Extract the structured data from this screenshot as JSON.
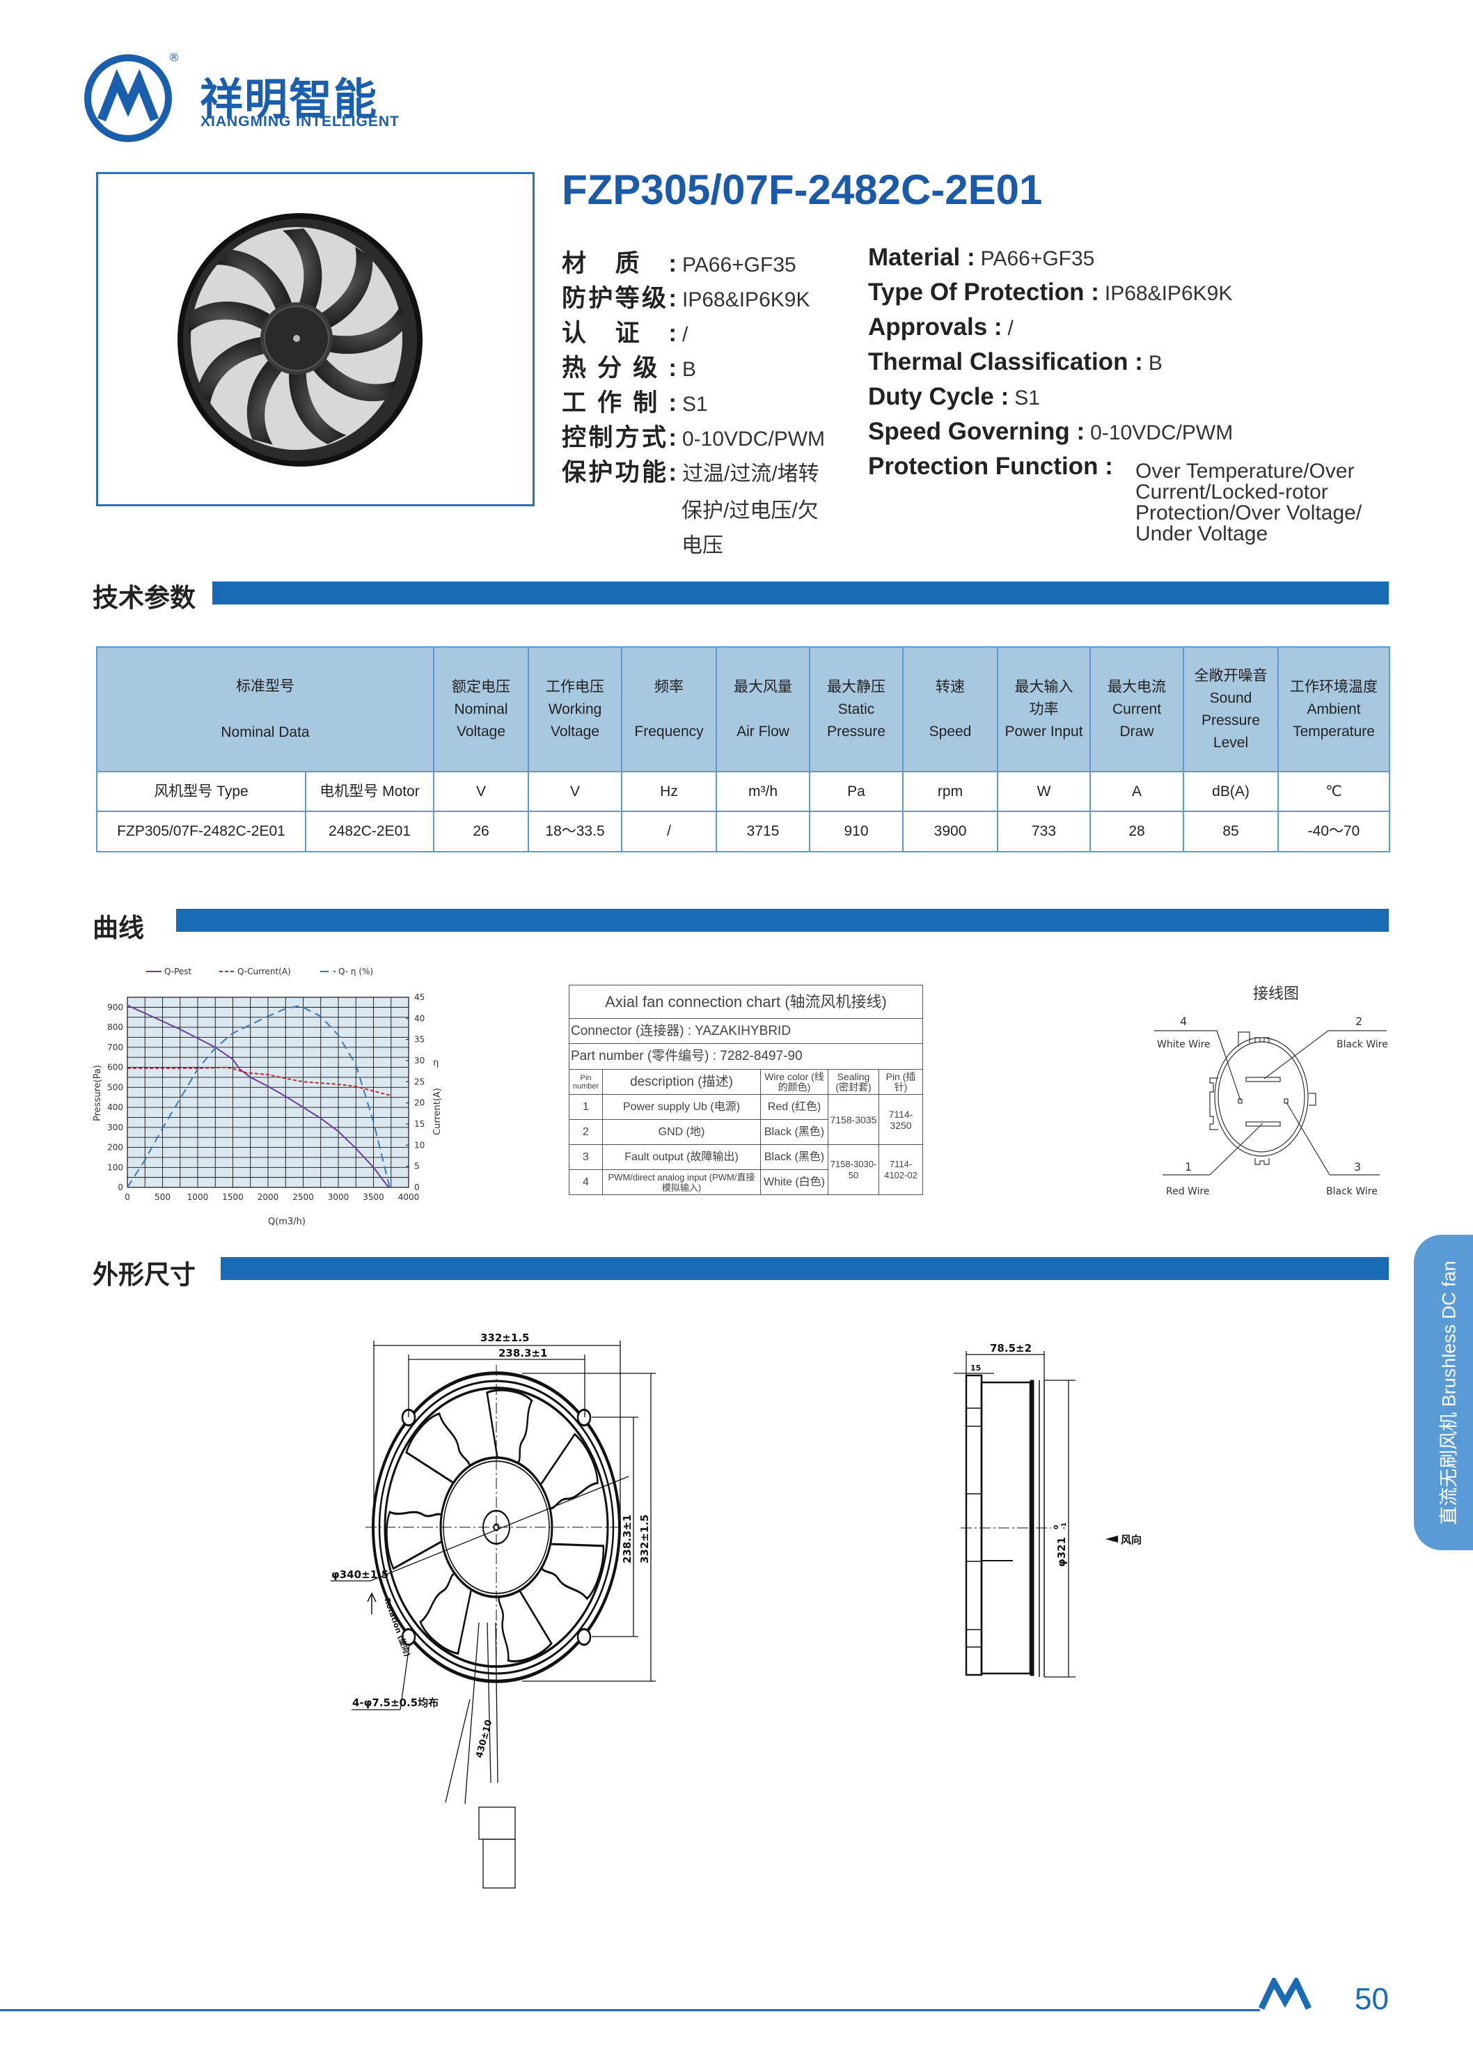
{
  "brand": {
    "name_cn": "祥明智能",
    "name_en": "XIANGMING INTELLIGENT",
    "registered": "®",
    "accent": "#1a5fae"
  },
  "product": {
    "title": "FZP305/07F-2482C-2E01"
  },
  "specs_cn": [
    {
      "label": "材质:",
      "value": "PA66+GF35"
    },
    {
      "label": "防护等级:",
      "value": "IP68&IP6K9K"
    },
    {
      "label": "认证:",
      "value": "/"
    },
    {
      "label": "热分级:",
      "value": "B"
    },
    {
      "label": "工作制:",
      "value": "S1"
    },
    {
      "label": "控制方式:",
      "value": "0-10VDC/PWM"
    },
    {
      "label": "保护功能:",
      "value": "过温/过流/堵转",
      "value_line2": "保护/过电压/欠",
      "value_line3": "电压"
    }
  ],
  "specs_en": [
    {
      "label": "Material :",
      "value": "PA66+GF35"
    },
    {
      "label": "Type Of Protection :",
      "value": "IP68&IP6K9K"
    },
    {
      "label": "Approvals :",
      "value": "/"
    },
    {
      "label": "Thermal Classification :",
      "value": "B"
    },
    {
      "label": "Duty Cycle :",
      "value": "S1"
    },
    {
      "label": "Speed Governing :",
      "value": "0-10VDC/PWM"
    },
    {
      "label": "Protection Function :",
      "value_lines": [
        "Over Temperature/Over",
        "Current/Locked-rotor",
        "Protection/Over Voltage/",
        "Under Voltage"
      ]
    }
  ],
  "sections": {
    "tech": "技术参数",
    "curve": "曲线",
    "dimensions": "外形尺寸"
  },
  "spec_table": {
    "headers": [
      {
        "cn": "标准型号",
        "en": "Nominal Data"
      },
      {
        "cn": "额定电压",
        "en1": "Nominal",
        "en2": "Voltage"
      },
      {
        "cn": "工作电压",
        "en1": "Working",
        "en2": "Voltage"
      },
      {
        "cn": "频率",
        "en1": "",
        "en2": "Frequency"
      },
      {
        "cn": "最大风量",
        "en1": "",
        "en2": "Air Flow"
      },
      {
        "cn": "最大静压",
        "en1": "Static",
        "en2": "Pressure"
      },
      {
        "cn": "转速",
        "en1": "",
        "en2": "Speed"
      },
      {
        "cn": "最大输入",
        "en1": "功率",
        "en2": "Power Input"
      },
      {
        "cn": "最大电流",
        "en1": "Current",
        "en2": "Draw"
      },
      {
        "cn": "全敞开噪音",
        "en1": "Sound",
        "en2": "Pressure",
        "en3": "Level"
      },
      {
        "cn": "工作环境温度",
        "en1": "Ambient",
        "en2": "Temperature"
      }
    ],
    "units": [
      "风机型号 Type",
      "电机型号 Motor",
      "V",
      "V",
      "Hz",
      "m³/h",
      "Pa",
      "rpm",
      "W",
      "A",
      "dB(A)",
      "℃"
    ],
    "values": [
      "FZP305/07F-2482C-2E01",
      "2482C-2E01",
      "26",
      "18～33.5",
      "/",
      "3715",
      "910",
      "3900",
      "733",
      "28",
      "85",
      "-40～70"
    ]
  },
  "chart_data": {
    "type": "line",
    "legend": [
      "Q-Pest",
      "Q-Current(A)",
      "Q- η (%)"
    ],
    "legend_placement": "top",
    "xlabel": "Q(m3/h)",
    "ylabel": "Pressure(Pa)",
    "y2label_top": "η",
    "y2label": "Current(A)",
    "xlim": [
      0,
      4000
    ],
    "ylim": [
      0,
      950
    ],
    "y2lim": [
      0,
      45
    ],
    "xticks": [
      0,
      500,
      1000,
      1500,
      2000,
      2500,
      3000,
      3500,
      4000
    ],
    "yticks": [
      0,
      100,
      200,
      300,
      400,
      500,
      600,
      700,
      800,
      900
    ],
    "y2ticks": [
      0,
      5,
      10,
      15,
      20,
      25,
      30,
      35,
      40,
      45
    ],
    "grid": true,
    "series": [
      {
        "name": "Q-Pest",
        "axis": "left",
        "color": "#6a3d9a",
        "style": "solid",
        "x": [
          0,
          250,
          500,
          750,
          1000,
          1250,
          1500,
          1600,
          1750,
          2000,
          2250,
          2500,
          2750,
          3000,
          3250,
          3500,
          3715
        ],
        "y": [
          910,
          870,
          830,
          790,
          745,
          700,
          640,
          590,
          550,
          505,
          455,
          400,
          345,
          280,
          195,
          100,
          0
        ]
      },
      {
        "name": "Q-Current(A)",
        "axis": "right",
        "color": "#c0262d",
        "style": "dashed",
        "x": [
          0,
          500,
          1000,
          1400,
          1500,
          1700,
          2000,
          2250,
          2500,
          3000,
          3250,
          3500,
          3735
        ],
        "y": [
          28.2,
          28.2,
          28.2,
          28.4,
          28.1,
          27.1,
          26.7,
          25.8,
          25.0,
          24.4,
          23.9,
          22.8,
          21.8
        ]
      },
      {
        "name": "Q- η (%)",
        "axis": "right",
        "color": "#3d78b0",
        "style": "longdash",
        "x": [
          0,
          250,
          500,
          750,
          1000,
          1250,
          1500,
          1750,
          2000,
          2250,
          2450,
          2750,
          3000,
          3250,
          3500,
          3730
        ],
        "y": [
          0,
          6.5,
          14,
          21,
          28,
          33,
          36.5,
          38.5,
          40.5,
          42.3,
          43,
          40.5,
          36,
          29,
          15.5,
          0
        ]
      }
    ]
  },
  "connection_chart": {
    "title": "Axial  fan  connection  chart (轴流风机接线)",
    "connector": "Connector (连接器) : YAZAKIHYBRID",
    "part_number": "Part number (零件编号) : 7282-8497-90",
    "headers": [
      "Pin number",
      "description (描述)",
      "Wire color (线的颜色)",
      "Sealing (密封套)",
      "Pin (插针)"
    ],
    "rows": [
      {
        "pin": "1",
        "desc": "Power supply Ub (电源)",
        "color": "Red (红色)"
      },
      {
        "pin": "2",
        "desc": "GND (地)",
        "color": "Black (黑色)"
      },
      {
        "pin": "3",
        "desc": "Fault output (故障输出)",
        "color": "Black (黑色)"
      },
      {
        "pin": "4",
        "desc": "PWM/direct analog input (PWM/直接模拟输入)",
        "color": "White (白色)"
      }
    ],
    "sealing": [
      "7158-3035",
      "7158-3030-50"
    ],
    "pins": [
      "7114-3250",
      "7114-4102-02"
    ]
  },
  "wiring": {
    "title": "接线图",
    "pins": [
      {
        "num": "4",
        "label": "White Wire"
      },
      {
        "num": "2",
        "label": "Black Wire"
      },
      {
        "num": "1",
        "label": "Red Wire"
      },
      {
        "num": "3",
        "label": "Black Wire"
      }
    ]
  },
  "drawing": {
    "width_outer": "332±1.5",
    "width_holes": "238.3±1",
    "height_holes": "238.3±1",
    "height_outer": "332±1.5",
    "diameter": "φ340±1.5",
    "rotation": "Rotation (旋向)",
    "holes": "4-φ7.5±0.5均布",
    "cable": "430±10",
    "depth": "78.5±2",
    "flange": "15",
    "shroud_dia": "φ321",
    "shroud_tol_upper": "0",
    "shroud_tol_lower": "-1",
    "airflow": "风向"
  },
  "side_tab": {
    "text": "直流无刷风机  Brushless DC fan",
    "color": "#5b9bd5"
  },
  "footer": {
    "page": "50"
  }
}
